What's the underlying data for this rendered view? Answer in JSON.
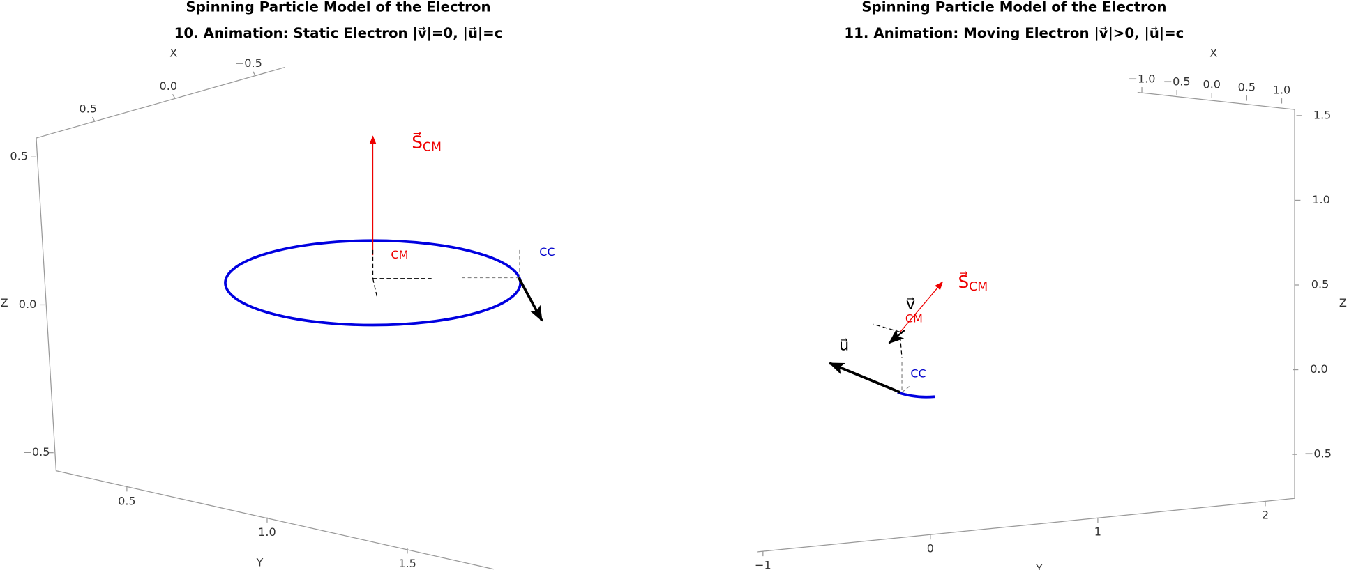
{
  "panels": [
    {
      "title": "Spinning Particle Model of the Electron",
      "subtitle": "10. Animation: Static Electron |v⃗|=0, |u⃗|=c",
      "axes": {
        "x": {
          "label": "X",
          "ticks": [
            {
              "value": 0.5,
              "label": "0.5"
            },
            {
              "value": 0,
              "label": "0.0"
            },
            {
              "value": -0.5,
              "label": "−0.5"
            }
          ]
        },
        "z": {
          "label": "Z",
          "ticks": [
            {
              "value": 0.5,
              "label": "0.5"
            },
            {
              "value": 0,
              "label": "0.0"
            },
            {
              "value": -0.5,
              "label": "−0.5"
            }
          ]
        },
        "y": {
          "label": "Y",
          "ticks": [
            {
              "value": 0.5,
              "label": "0.5"
            },
            {
              "value": 1,
              "label": "1.0"
            },
            {
              "value": 1.5,
              "label": "1.5"
            }
          ]
        }
      },
      "labels": {
        "spin": "S⃗",
        "spin_sub": "CM",
        "cm": "CM",
        "cc": "CC"
      }
    },
    {
      "title": "Spinning Particle Model of the Electron",
      "subtitle": "11. Animation: Moving Electron |v⃗|>0, |u⃗|=c",
      "axes": {
        "x": {
          "label": "X",
          "ticks": [
            {
              "value": -1,
              "label": "−1.0"
            },
            {
              "value": -0.5,
              "label": "−0.5"
            },
            {
              "value": 0,
              "label": "0.0"
            },
            {
              "value": 0.5,
              "label": "0.5"
            },
            {
              "value": 1,
              "label": "1.0"
            }
          ]
        },
        "z": {
          "label": "Z",
          "ticks": [
            {
              "value": 1.5,
              "label": "1.5"
            },
            {
              "value": 1,
              "label": "1.0"
            },
            {
              "value": 0.5,
              "label": "0.5"
            },
            {
              "value": 0,
              "label": "0.0"
            },
            {
              "value": -0.5,
              "label": "−0.5"
            }
          ]
        },
        "y": {
          "label": "Y",
          "ticks": [
            {
              "value": -1,
              "label": "−1"
            },
            {
              "value": 0,
              "label": "0"
            },
            {
              "value": 1,
              "label": "1"
            },
            {
              "value": 2,
              "label": "2"
            }
          ]
        }
      },
      "labels": {
        "spin": "S⃗",
        "spin_sub": "CM",
        "cm": "CM",
        "cc": "CC",
        "u": "u⃗",
        "v": "v⃗"
      }
    }
  ]
}
